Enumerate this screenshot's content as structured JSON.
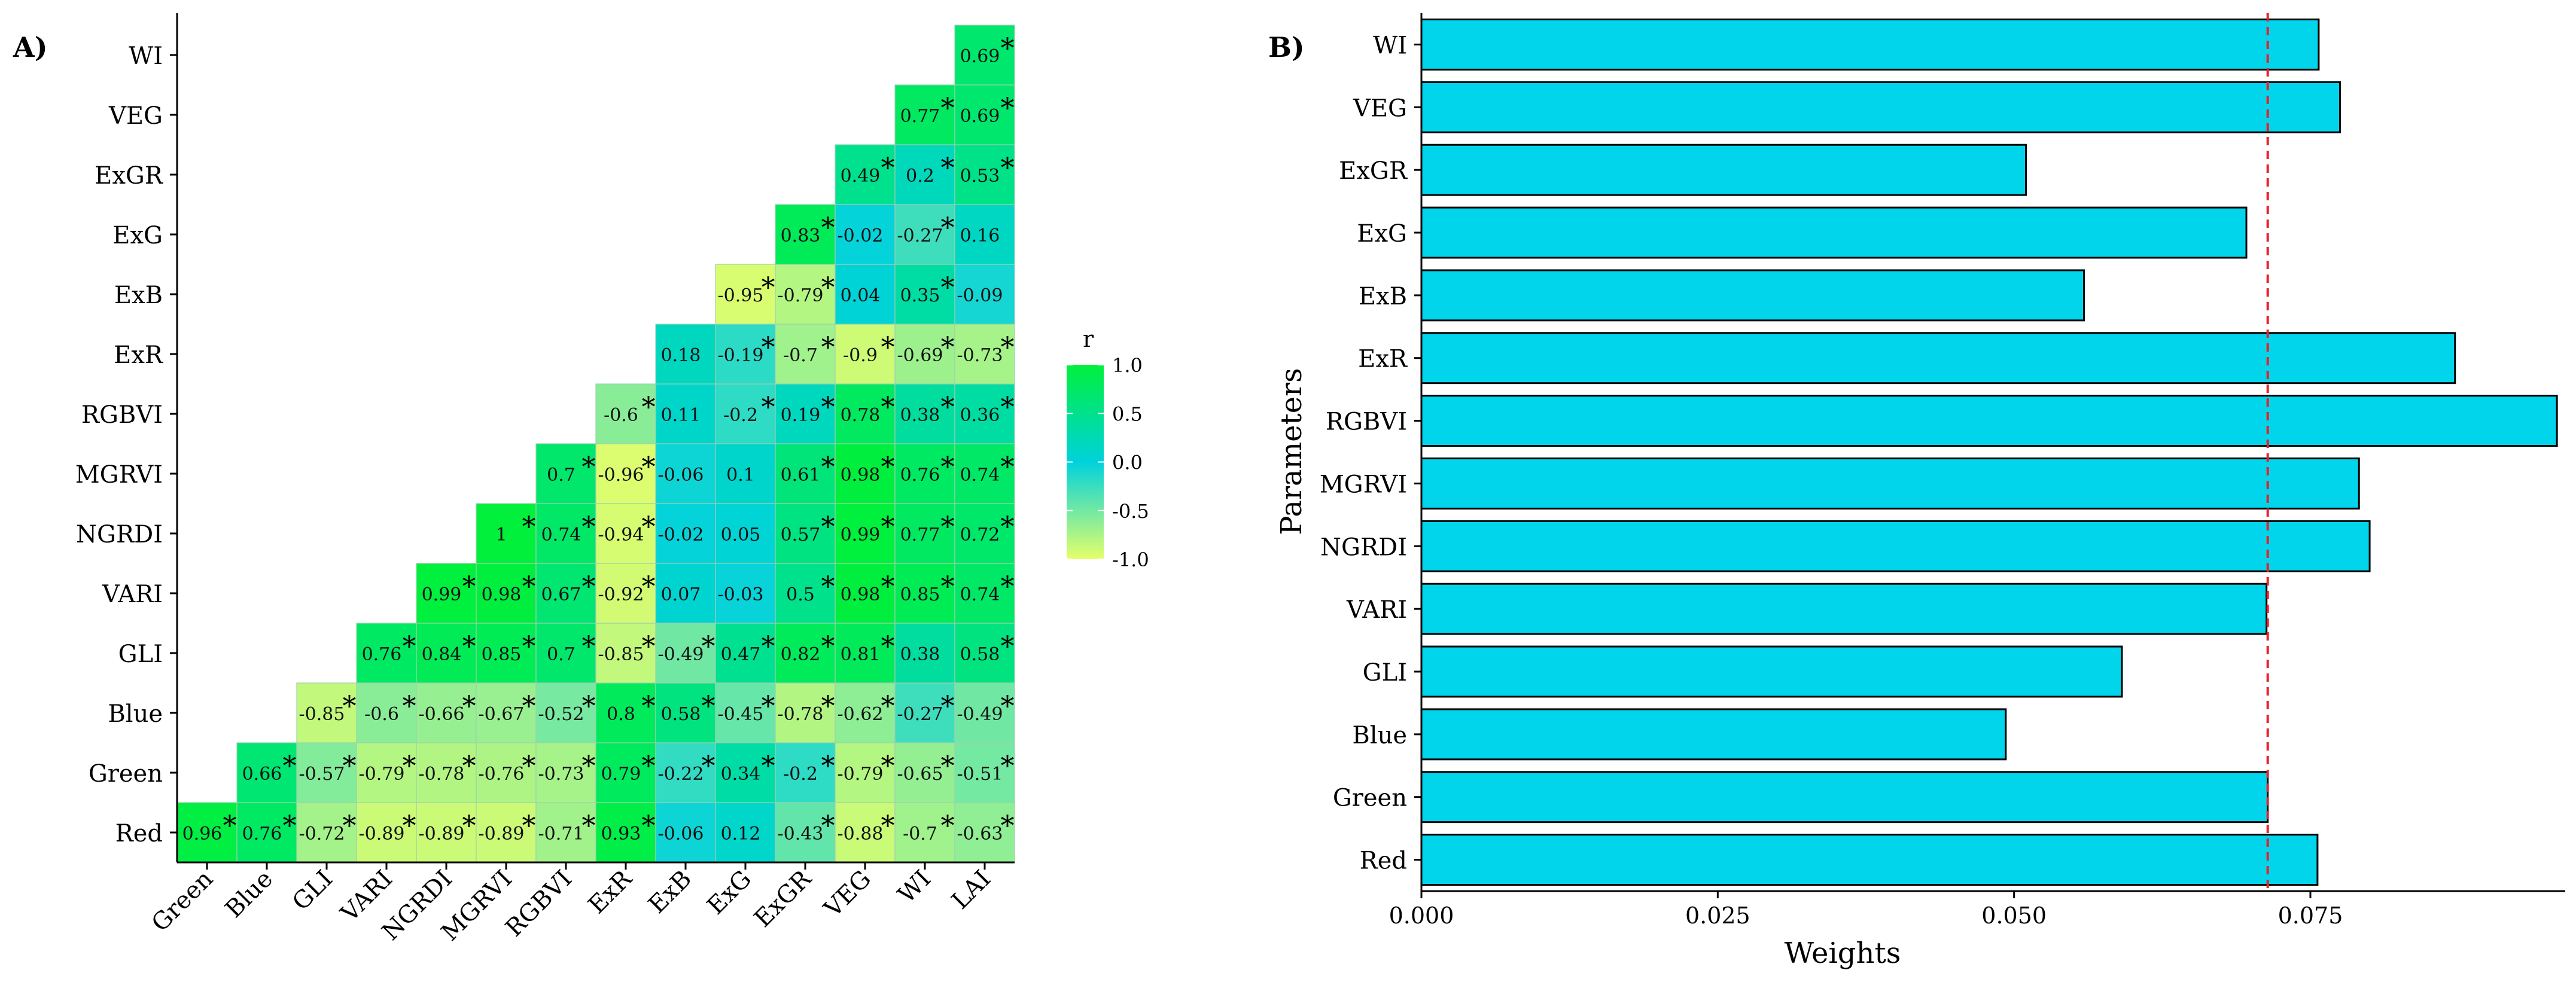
{
  "panels": {
    "a_label": "A)",
    "b_label": "B)"
  },
  "colors": {
    "pos": "#00f03c",
    "mid": "#00d2dc",
    "neg": "#e4ff6a",
    "bar": "#00d5ec",
    "ref_line": "#e8202a"
  },
  "chart_data": [
    {
      "type": "heatmap",
      "title": "",
      "xlabel": "",
      "ylabel": "",
      "x_categories": [
        "Green",
        "Blue",
        "GLI",
        "VARI",
        "NGRDI",
        "MGRVI",
        "RGBVI",
        "ExR",
        "ExB",
        "ExG",
        "ExGR",
        "VEG",
        "WI",
        "LAI"
      ],
      "y_categories": [
        "Red",
        "Green",
        "Blue",
        "GLI",
        "VARI",
        "NGRDI",
        "MGRVI",
        "RGBVI",
        "ExR",
        "ExB",
        "ExG",
        "ExGR",
        "VEG",
        "WI"
      ],
      "lower_triangle": true,
      "value_labels": [
        [
          "0.96",
          "0.76",
          "-0.72",
          "-0.89",
          "-0.89",
          "-0.89",
          "-0.71",
          "0.93",
          "-0.06",
          "0.12",
          "-0.43",
          "-0.88",
          "-0.7",
          "-0.63"
        ],
        [
          "0.66",
          "-0.57",
          "-0.79",
          "-0.78",
          "-0.76",
          "-0.73",
          "0.79",
          "-0.22",
          "0.34",
          "-0.2",
          "-0.79",
          "-0.65",
          "-0.51"
        ],
        [
          "-0.85",
          "-0.6",
          "-0.66",
          "-0.67",
          "-0.52",
          "0.8",
          "0.58",
          "-0.45",
          "-0.78",
          "-0.62",
          "-0.27",
          "-0.49"
        ],
        [
          "0.76",
          "0.84",
          "0.85",
          "0.7",
          "-0.85",
          "-0.49",
          "0.47",
          "0.82",
          "0.81",
          "0.38",
          "0.58"
        ],
        [
          "0.99",
          "0.98",
          "0.67",
          "-0.92",
          "0.07",
          "-0.03",
          "0.5",
          "0.98",
          "0.85",
          "0.74"
        ],
        [
          "1",
          "0.74",
          "-0.94",
          "-0.02",
          "0.05",
          "0.57",
          "0.99",
          "0.77",
          "0.72"
        ],
        [
          "0.7",
          "-0.96",
          "-0.06",
          "0.1",
          "0.61",
          "0.98",
          "0.76",
          "0.74"
        ],
        [
          "-0.6",
          "0.11",
          "-0.2",
          "0.19",
          "0.78",
          "0.38",
          "0.36"
        ],
        [
          "0.18",
          "-0.19",
          "-0.7",
          "-0.9",
          "-0.69",
          "-0.73"
        ],
        [
          "-0.95",
          "-0.79",
          "0.04",
          "0.35",
          "-0.09"
        ],
        [
          "0.83",
          "-0.02",
          "-0.27",
          "0.16"
        ],
        [
          "0.49",
          "0.2",
          "0.53"
        ],
        [
          "0.77",
          "0.69"
        ],
        [
          "0.69"
        ]
      ],
      "significant": [
        [
          true,
          true,
          true,
          true,
          true,
          true,
          true,
          true,
          false,
          false,
          true,
          true,
          true,
          true
        ],
        [
          true,
          true,
          true,
          true,
          true,
          true,
          true,
          true,
          true,
          true,
          true,
          true,
          true
        ],
        [
          true,
          true,
          true,
          true,
          true,
          true,
          true,
          true,
          true,
          true,
          true,
          true
        ],
        [
          true,
          true,
          true,
          true,
          true,
          true,
          true,
          true,
          true,
          false,
          true
        ],
        [
          true,
          true,
          true,
          true,
          false,
          false,
          true,
          true,
          true,
          true
        ],
        [
          true,
          true,
          true,
          false,
          false,
          true,
          true,
          true,
          true
        ],
        [
          true,
          true,
          false,
          false,
          true,
          true,
          true,
          true
        ],
        [
          true,
          false,
          true,
          true,
          true,
          true,
          true
        ],
        [
          false,
          true,
          true,
          true,
          true,
          true
        ],
        [
          true,
          true,
          false,
          true,
          false
        ],
        [
          true,
          false,
          true,
          false
        ],
        [
          true,
          true,
          true
        ],
        [
          true,
          true
        ],
        [
          true
        ]
      ],
      "significance_mark": "*",
      "legend": {
        "title": "r",
        "ticks": [
          "1.0",
          "0.5",
          "0.0",
          "-0.5",
          "-1.0"
        ],
        "range": [
          -1,
          1
        ]
      }
    },
    {
      "type": "bar",
      "orientation": "horizontal",
      "title": "",
      "xlabel": "Weights",
      "ylabel": "Parameters",
      "categories": [
        "Red",
        "Green",
        "Blue",
        "GLI",
        "VARI",
        "NGRDI",
        "MGRVI",
        "RGBVI",
        "ExR",
        "ExB",
        "ExG",
        "ExGR",
        "VEG",
        "WI"
      ],
      "values": [
        0.0756,
        0.0714,
        0.0493,
        0.0591,
        0.0713,
        0.08,
        0.0791,
        0.0958,
        0.0872,
        0.0559,
        0.0696,
        0.051,
        0.0775,
        0.0757
      ],
      "xlim": [
        0,
        0.0965
      ],
      "x_ticks": [
        "0.000",
        "0.025",
        "0.050",
        "0.075"
      ],
      "x_tick_values": [
        0,
        0.025,
        0.05,
        0.075
      ],
      "reference_line": 0.0714,
      "grid": false
    }
  ]
}
